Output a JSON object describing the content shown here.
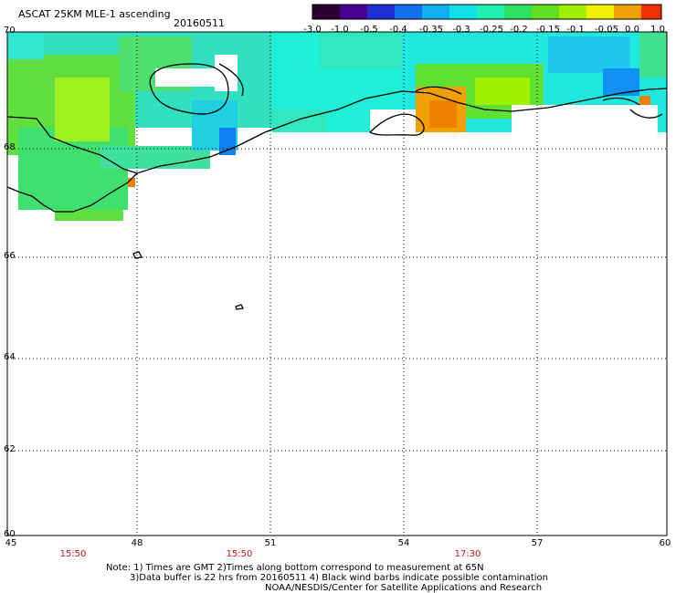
{
  "header": {
    "title": "ASCAT 25KM MLE-1 ascending",
    "date": "20160511"
  },
  "colorbar": {
    "ticks": [
      "-3.0",
      "-1.0",
      "-0.5",
      "-0.4",
      "-0.35",
      "-0.3",
      "-0.25",
      "-0.2",
      "-0.15",
      "-0.1",
      "-0.05",
      "0.0",
      "1.0"
    ],
    "colors": [
      "#2a0030",
      "#4a0090",
      "#2030d0",
      "#1070f0",
      "#10b0f0",
      "#10e0e8",
      "#20f0b0",
      "#30e060",
      "#60e020",
      "#a0f000",
      "#f0f000",
      "#f0a000",
      "#f03000"
    ]
  },
  "axes": {
    "lat_labels": [
      "70",
      "68",
      "66",
      "64",
      "62",
      "60"
    ],
    "lon_labels": [
      "45",
      "48",
      "51",
      "54",
      "57",
      "60"
    ]
  },
  "times": [
    "15:50",
    "15:50",
    "17:30"
  ],
  "notes": {
    "line1": "Note: 1) Times are GMT 2)Times along bottom correspond to measurement at 65N",
    "line2": "3)Data buffer is 22 hrs from 20160511 4) Black wind barbs indicate possible contamination",
    "line3": "NOAA/NESDIS/Center for Satellite Applications and Research"
  }
}
